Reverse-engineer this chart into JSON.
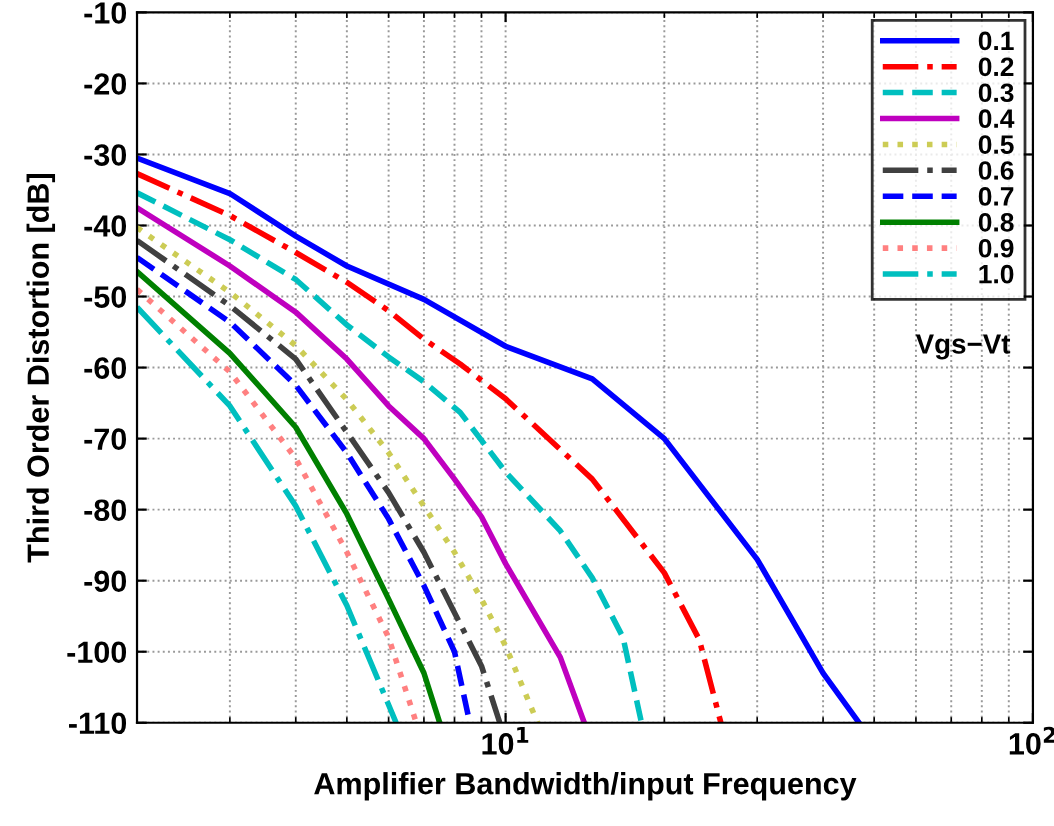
{
  "chart_data": {
    "type": "line",
    "xlabel": "Amplifier Bandwidth/input Frequency",
    "ylabel": "Third Order Distortion [dB]",
    "log": "x",
    "grid": true,
    "legend": "top right",
    "annotations": [
      "Vgs−Vt"
    ],
    "xlim": [
      2,
      100
    ],
    "xticks": [
      {
        "value": 10,
        "label": "10$^{1}$"
      },
      {
        "value": 100,
        "label": "10$^{2}$"
      }
    ],
    "ylim": [
      -110,
      -10
    ],
    "yticks": [
      -110,
      -100,
      -90,
      -80,
      -70,
      -60,
      -50,
      -40,
      -30,
      -20,
      -10
    ],
    "series": [
      {
        "name": "0.1",
        "color": "#0000ff",
        "line_style": "solid",
        "x": [
          2,
          3,
          4,
          5,
          7,
          10,
          14.6,
          20,
          30,
          40,
          46.8
        ],
        "values": [
          -30.5,
          -35.5,
          -41.5,
          -45.7,
          -50.4,
          -57,
          -61.6,
          -70,
          -87,
          -103,
          -110
        ]
      },
      {
        "name": "0.2",
        "color": "#ff0000",
        "line_style": "dashdot",
        "x": [
          2,
          3,
          4,
          5,
          6,
          7,
          8.2,
          10,
          14.6,
          20,
          23.3,
          25.6
        ],
        "values": [
          -32.7,
          -38.6,
          -43.8,
          -48,
          -52,
          -56,
          -59.5,
          -64.4,
          -75.7,
          -88.9,
          -98.3,
          -110
        ]
      },
      {
        "name": "0.3",
        "color": "#00bfbf",
        "line_style": "dashed",
        "x": [
          2,
          3,
          4,
          5,
          6,
          7,
          8.2,
          10,
          12.7,
          14.6,
          16.7,
          18.1
        ],
        "values": [
          -35.4,
          -42,
          -47.6,
          -54,
          -58.5,
          -62,
          -66.3,
          -74.7,
          -83,
          -89.6,
          -98,
          -110
        ]
      },
      {
        "name": "0.4",
        "color": "#bf00bf",
        "line_style": "solid",
        "x": [
          2,
          3,
          4,
          5,
          6,
          7,
          8,
          9,
          10,
          12.7,
          14.1
        ],
        "values": [
          -37.5,
          -45.7,
          -52.2,
          -58.8,
          -65.4,
          -70,
          -75.7,
          -81,
          -87.6,
          -100.8,
          -110
        ]
      },
      {
        "name": "0.5",
        "color": "#cccc55",
        "line_style": "dotted",
        "x": [
          2,
          3,
          4,
          5,
          6,
          7,
          8,
          9,
          10,
          11.5
        ],
        "values": [
          -40.3,
          -49.4,
          -56.9,
          -64.5,
          -72,
          -79.5,
          -86,
          -92.6,
          -99.2,
          -110
        ]
      },
      {
        "name": "0.6",
        "color": "#404040",
        "line_style": "dashdot",
        "x": [
          2,
          3,
          4,
          5,
          6,
          7,
          8,
          9,
          9.75
        ],
        "values": [
          -42.1,
          -51.3,
          -58.8,
          -69.1,
          -77.6,
          -86,
          -94.5,
          -102,
          -110
        ]
      },
      {
        "name": "0.7",
        "color": "#0000ff",
        "line_style": "dashed",
        "x": [
          2,
          3,
          4,
          5,
          6,
          7,
          8,
          8.55
        ],
        "values": [
          -44.5,
          -53.6,
          -62.5,
          -72,
          -81.3,
          -90.7,
          -100,
          -110
        ]
      },
      {
        "name": "0.8",
        "color": "#008000",
        "line_style": "solid",
        "x": [
          2,
          3,
          4,
          5,
          6,
          7,
          7.5
        ],
        "values": [
          -46.5,
          -58,
          -68.4,
          -80.6,
          -92.6,
          -103,
          -110
        ]
      },
      {
        "name": "0.9",
        "color": "#ff8080",
        "line_style": "dotted",
        "x": [
          2,
          3,
          4,
          5,
          6,
          6.77
        ],
        "values": [
          -49,
          -60.6,
          -72.8,
          -86,
          -98,
          -110
        ]
      },
      {
        "name": "1.0",
        "color": "#00bfbf",
        "line_style": "dashdot",
        "x": [
          2,
          3,
          4,
          5,
          6.2
        ],
        "values": [
          -51.5,
          -65.4,
          -79.5,
          -93.5,
          -110
        ]
      }
    ]
  }
}
